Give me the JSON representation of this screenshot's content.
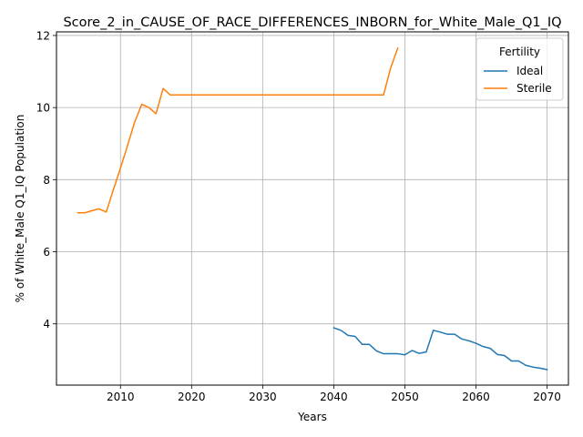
{
  "chart_data": {
    "type": "line",
    "title": "Score_2_in_CAUSE_OF_RACE_DIFFERENCES_INBORN_for_White_Male_Q1_IQ",
    "xlabel": "Years",
    "ylabel": "% of White_Male Q1_IQ Population",
    "xlim": [
      2001,
      2073
    ],
    "ylim": [
      2.3,
      12.1
    ],
    "xticks": [
      2010,
      2020,
      2030,
      2040,
      2050,
      2060,
      2070
    ],
    "yticks": [
      4,
      6,
      8,
      10,
      12
    ],
    "grid": true,
    "legend": {
      "title": "Fertility",
      "position": "top-right"
    },
    "series": [
      {
        "name": "Ideal",
        "color": "#1f77b4",
        "x": [
          2040,
          2041,
          2042,
          2043,
          2044,
          2045,
          2046,
          2047,
          2048,
          2049,
          2050,
          2051,
          2052,
          2053,
          2054,
          2055,
          2056,
          2057,
          2058,
          2059,
          2060,
          2061,
          2062,
          2063,
          2064,
          2065,
          2066,
          2067,
          2068,
          2069,
          2070
        ],
        "y": [
          3.89,
          3.82,
          3.68,
          3.65,
          3.43,
          3.43,
          3.25,
          3.17,
          3.17,
          3.17,
          3.14,
          3.26,
          3.18,
          3.22,
          3.82,
          3.77,
          3.71,
          3.71,
          3.58,
          3.53,
          3.46,
          3.37,
          3.32,
          3.15,
          3.12,
          2.97,
          2.97,
          2.85,
          2.8,
          2.77,
          2.73
        ]
      },
      {
        "name": "Sterile",
        "color": "#ff7f0e",
        "x": [
          2004,
          2005,
          2006,
          2007,
          2008,
          2009,
          2010,
          2011,
          2012,
          2013,
          2014,
          2015,
          2016,
          2017,
          2018,
          2019,
          2020,
          2021,
          2022,
          2023,
          2024,
          2025,
          2026,
          2027,
          2028,
          2029,
          2030,
          2031,
          2032,
          2033,
          2034,
          2035,
          2036,
          2037,
          2038,
          2039,
          2040,
          2041,
          2042,
          2043,
          2044,
          2045,
          2046,
          2047,
          2048,
          2049
        ],
        "y": [
          7.08,
          7.08,
          7.14,
          7.19,
          7.1,
          7.72,
          8.32,
          8.95,
          9.6,
          10.09,
          10.0,
          9.83,
          10.53,
          10.35,
          10.35,
          10.35,
          10.35,
          10.35,
          10.35,
          10.35,
          10.35,
          10.35,
          10.35,
          10.35,
          10.35,
          10.35,
          10.35,
          10.35,
          10.35,
          10.35,
          10.35,
          10.35,
          10.35,
          10.35,
          10.35,
          10.35,
          10.35,
          10.35,
          10.35,
          10.35,
          10.35,
          10.35,
          10.35,
          10.35,
          11.1,
          11.65
        ]
      }
    ]
  }
}
